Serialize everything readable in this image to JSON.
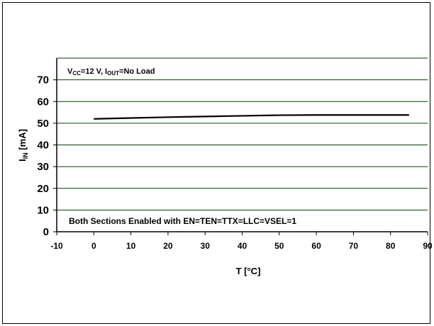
{
  "chart_data": {
    "type": "line",
    "title": "",
    "xlabel": "T [°C]",
    "ylabel": {
      "main": "I",
      "sub": "IN",
      "rest": " [mA]"
    },
    "xlim": [
      -10,
      90
    ],
    "ylim": [
      0,
      80
    ],
    "x_ticks": [
      -10,
      0,
      10,
      20,
      30,
      40,
      50,
      60,
      70,
      80,
      90
    ],
    "y_ticks": [
      0,
      10,
      20,
      30,
      40,
      50,
      60,
      70
    ],
    "grid": {
      "horizontal": true,
      "vertical": false
    },
    "series": [
      {
        "x": [
          0,
          10,
          20,
          30,
          40,
          50,
          60,
          70,
          80,
          85
        ],
        "y": [
          52,
          52.4,
          52.8,
          53.1,
          53.4,
          53.7,
          53.8,
          53.8,
          53.8,
          53.8
        ]
      }
    ],
    "annotation_top": {
      "parts": [
        {
          "t": "V",
          "sub": false
        },
        {
          "t": "CC",
          "sub": true
        },
        {
          "t": "=12 V, I",
          "sub": false
        },
        {
          "t": "OUT",
          "sub": true
        },
        {
          "t": "=No Load",
          "sub": false
        }
      ]
    },
    "annotation_bottom": "Both Sections Enabled with EN=TEN=TTX=LLC=VSEL=1",
    "colors": {
      "line": "#000000",
      "grid": "#004000",
      "axis": "#000000"
    }
  }
}
